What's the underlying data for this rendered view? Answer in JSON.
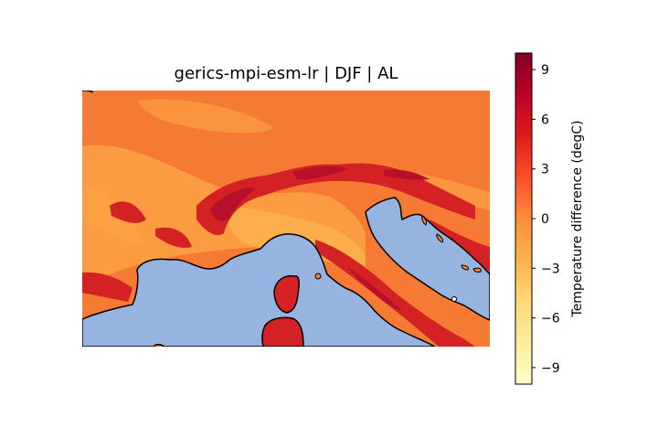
{
  "title": "gerics-mpi-esm-lr | DJF | AL",
  "colorbar": {
    "label": "Temperature difference (degC)",
    "ticks": [
      "9",
      "6",
      "3",
      "0",
      "−3",
      "−6",
      "−9"
    ],
    "tick_values": [
      9,
      6,
      3,
      0,
      -3,
      -6,
      -9
    ],
    "range": [
      -10,
      10
    ],
    "colormap": [
      "#ffffcc",
      "#ffeda0",
      "#fed976",
      "#feb24c",
      "#fd8d3c",
      "#fc4e2a",
      "#e31a1c",
      "#bd0026",
      "#800026"
    ]
  },
  "colors": {
    "sea": "#97b4e0",
    "coast": "#000000",
    "field_base": "#f67f35",
    "field_warm": "#fb9e42",
    "field_hot": "#d42224",
    "field_very_hot": "#b8102a"
  }
}
